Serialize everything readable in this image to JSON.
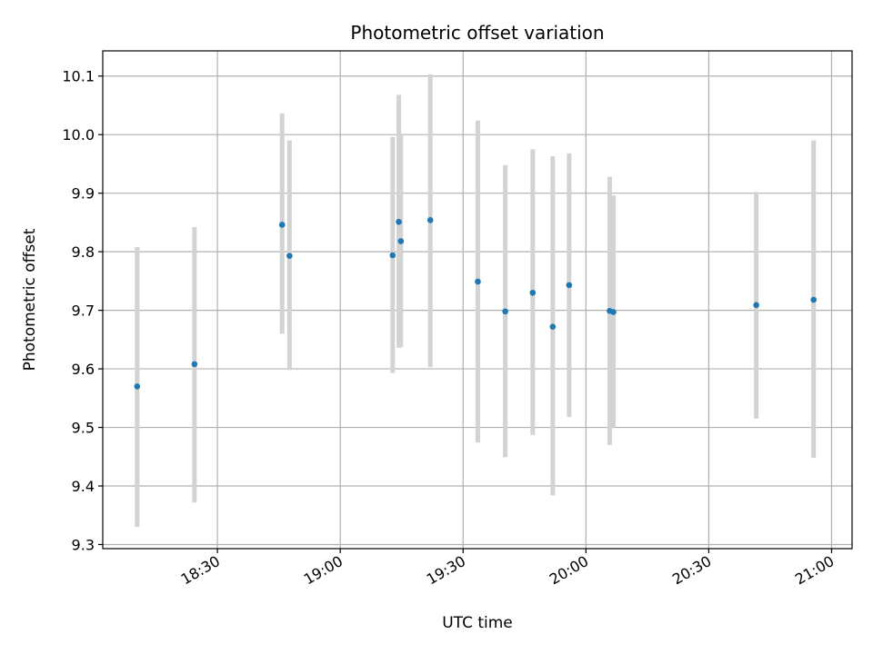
{
  "chart_data": {
    "type": "scatter",
    "title": "Photometric offset variation",
    "xlabel": "UTC time",
    "ylabel": "Photometric offset",
    "grid": true,
    "x_axis": {
      "unit": "time of day (UTC)",
      "range": [
        "18:02",
        "21:05"
      ],
      "ticks": [
        "18:30",
        "19:00",
        "19:30",
        "20:00",
        "20:30",
        "21:00"
      ]
    },
    "y_axis": {
      "range": [
        9.293,
        10.143
      ],
      "ticks": [
        "9.3",
        "9.4",
        "9.5",
        "9.6",
        "9.7",
        "9.8",
        "9.9",
        "10.0",
        "10.1"
      ]
    },
    "colors": {
      "point": "#1f77b4",
      "errorbar": "#d3d3d3",
      "grid": "#b0b0b0"
    },
    "points": [
      {
        "x": "18:10.4",
        "y": 9.57,
        "low": 9.33,
        "high": 9.808
      },
      {
        "x": "18:24.4",
        "y": 9.608,
        "low": 9.372,
        "high": 9.842
      },
      {
        "x": "18:45.8",
        "y": 9.846,
        "low": 9.66,
        "high": 10.036
      },
      {
        "x": "18:47.6",
        "y": 9.793,
        "low": 9.598,
        "high": 9.99
      },
      {
        "x": "19:12.8",
        "y": 9.794,
        "low": 9.593,
        "high": 9.996
      },
      {
        "x": "19:14.3",
        "y": 9.851,
        "low": 9.636,
        "high": 10.068
      },
      {
        "x": "19:14.8",
        "y": 9.818,
        "low": 9.637,
        "high": 10.0
      },
      {
        "x": "19:22.0",
        "y": 9.854,
        "low": 9.603,
        "high": 10.103
      },
      {
        "x": "19:33.6",
        "y": 9.749,
        "low": 9.474,
        "high": 10.024
      },
      {
        "x": "19:40.3",
        "y": 9.698,
        "low": 9.449,
        "high": 9.948
      },
      {
        "x": "19:47.0",
        "y": 9.73,
        "low": 9.487,
        "high": 9.975
      },
      {
        "x": "19:51.9",
        "y": 9.672,
        "low": 9.384,
        "high": 9.963
      },
      {
        "x": "19:55.9",
        "y": 9.743,
        "low": 9.518,
        "high": 9.968
      },
      {
        "x": "20:05.8",
        "y": 9.699,
        "low": 9.47,
        "high": 9.928
      },
      {
        "x": "20:06.7",
        "y": 9.697,
        "low": 9.5,
        "high": 9.896
      },
      {
        "x": "20:41.6",
        "y": 9.709,
        "low": 9.515,
        "high": 9.902
      },
      {
        "x": "20:55.6",
        "y": 9.718,
        "low": 9.448,
        "high": 9.99
      }
    ]
  }
}
